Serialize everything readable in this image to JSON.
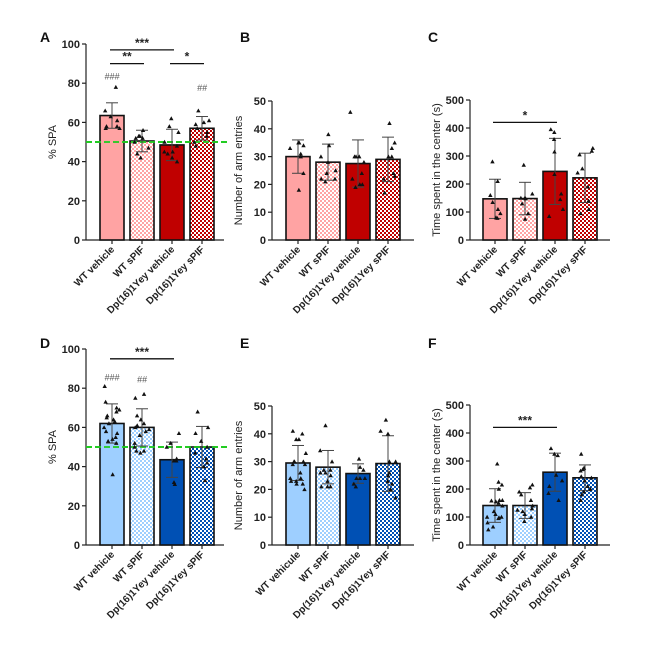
{
  "colors": {
    "wt_red": "#FFA3A3",
    "wt_red_check": "#FF9E9E",
    "dp_red": "#C00000",
    "dp_red_check": "#C00000",
    "wt_blue": "#9ECFFF",
    "wt_blue_check": "#8CC4FF",
    "dp_blue": "#0050B4",
    "dp_blue_check": "#0050B4",
    "reference_line": "#22CC22",
    "axis": "#222222"
  },
  "chart_data": [
    {
      "panel": "A",
      "type": "bar",
      "ylabel": "% SPA",
      "ylim": [
        0,
        100
      ],
      "yticks": [
        0,
        20,
        40,
        60,
        80,
        100
      ],
      "categories": [
        "WT vehicle",
        "WT sPIF",
        "Dp(16)1Yey vehicle",
        "Dp(16)1Yey sPIF"
      ],
      "fills": [
        "wt_red",
        "wt_red_check",
        "dp_red",
        "dp_red_check"
      ],
      "values": [
        63.5,
        50.5,
        48.5,
        57
      ],
      "errors": [
        6.5,
        5.5,
        8,
        6
      ],
      "points": [
        [
          78,
          66,
          63,
          61,
          58,
          58,
          57,
          57
        ],
        [
          56,
          53,
          53,
          52,
          52,
          50,
          47,
          44,
          42
        ],
        [
          62,
          58,
          55,
          50,
          48,
          45,
          45,
          44,
          42,
          40
        ],
        [
          66,
          61,
          60,
          59,
          57,
          55,
          53,
          50,
          48
        ]
      ],
      "reference_line": 50,
      "significance": [
        {
          "from": 0,
          "to": 2,
          "label": "***",
          "y": 97
        },
        {
          "from": 0,
          "to": 1,
          "label": "**",
          "y": 90
        },
        {
          "from": 2,
          "to": 3,
          "label": "*",
          "y": 90
        }
      ],
      "annotations": [
        {
          "bar": 0,
          "label": "###",
          "y": 82
        },
        {
          "bar": 3,
          "label": "##",
          "y": 76
        }
      ]
    },
    {
      "panel": "B",
      "type": "bar",
      "ylabel": "Number of arm entries",
      "ylim": [
        0,
        50
      ],
      "yticks": [
        0,
        10,
        20,
        30,
        40,
        50
      ],
      "categories": [
        "WT vehicle",
        "WT sPIF",
        "Dp(16)1Yey vehicle",
        "Dp(16)1Yey sPIF"
      ],
      "fills": [
        "wt_red",
        "wt_red_check",
        "dp_red",
        "dp_red_check"
      ],
      "values": [
        30,
        28,
        27.5,
        29
      ],
      "errors": [
        6,
        6.5,
        8.5,
        8
      ],
      "points": [
        [
          35,
          35,
          34,
          33,
          31,
          30,
          24,
          18
        ],
        [
          38,
          34,
          30,
          28,
          25,
          24,
          22,
          22,
          21
        ],
        [
          46,
          30,
          30,
          30,
          28,
          24,
          22,
          20,
          20,
          19
        ],
        [
          42,
          35,
          33,
          30,
          30,
          24,
          23,
          22,
          17
        ]
      ],
      "reference_line": null,
      "significance": [],
      "annotations": []
    },
    {
      "panel": "C",
      "type": "bar",
      "ylabel": "Time spent in the center (s)",
      "ylim": [
        0,
        500
      ],
      "yticks": [
        0,
        100,
        200,
        300,
        400,
        500
      ],
      "categories": [
        "WT vehicle",
        "WT sPIF",
        "Dp(16)1Yey vehicle",
        "Dp(16)1Yey sPIF"
      ],
      "fills": [
        "wt_red",
        "wt_red_check",
        "dp_red",
        "dp_red_check"
      ],
      "values": [
        147,
        148,
        245,
        222
      ],
      "errors": [
        70,
        58,
        118,
        88
      ],
      "points": [
        [
          280,
          210,
          160,
          135,
          110,
          95,
          80,
          78
        ],
        [
          268,
          165,
          150,
          150,
          148,
          130,
          95,
          75
        ],
        [
          395,
          385,
          360,
          315,
          235,
          165,
          145,
          110,
          85
        ],
        [
          328,
          318,
          305,
          255,
          240,
          190,
          140,
          110,
          95
        ]
      ],
      "reference_line": null,
      "significance": [
        {
          "from": 0,
          "to": 2,
          "label": "*",
          "y": 420
        }
      ],
      "annotations": []
    },
    {
      "panel": "D",
      "type": "bar",
      "ylabel": "% SPA",
      "ylim": [
        0,
        100
      ],
      "yticks": [
        0,
        20,
        40,
        60,
        80,
        100
      ],
      "categories": [
        "WT vehicle",
        "WT sPIF",
        "Dp(16)1Yey vehicle",
        "Dp(16)1Yey sPIF"
      ],
      "fills": [
        "wt_blue",
        "wt_blue_check",
        "dp_blue",
        "dp_blue_check"
      ],
      "values": [
        62,
        60,
        43.5,
        50
      ],
      "errors": [
        10,
        9.5,
        9,
        10.5
      ],
      "points": [
        [
          81,
          73,
          70,
          69,
          68,
          66,
          65,
          64,
          63,
          62,
          60,
          58,
          57,
          55,
          54,
          53,
          52,
          36
        ],
        [
          77,
          75,
          66,
          64,
          62,
          61,
          60,
          59,
          58,
          56,
          52,
          50,
          48,
          48,
          47
        ],
        [
          57,
          52,
          50,
          44,
          43,
          43,
          32,
          31
        ],
        [
          68,
          60,
          57,
          53,
          50,
          47,
          44,
          42,
          40,
          33
        ]
      ],
      "reference_line": 50,
      "significance": [
        {
          "from": 0,
          "to": 2,
          "label": "***",
          "y": 95
        }
      ],
      "annotations": [
        {
          "bar": 0,
          "label": "###",
          "y": 84
        },
        {
          "bar": 1,
          "label": "##",
          "y": 83
        }
      ]
    },
    {
      "panel": "E",
      "type": "bar",
      "ylabel": "Number of arm entries",
      "ylim": [
        0,
        50
      ],
      "yticks": [
        0,
        10,
        20,
        30,
        40,
        50
      ],
      "categories": [
        "WT vehicule",
        "WT sPIF",
        "Dp(16)1Yey vehicle",
        "Dp(16)1Yey sPIF"
      ],
      "fills": [
        "wt_blue",
        "wt_blue_check",
        "dp_blue",
        "dp_blue_check"
      ],
      "values": [
        29.5,
        28,
        25.7,
        29.3
      ],
      "errors": [
        6.3,
        6,
        3.5,
        10
      ],
      "points": [
        [
          41,
          40,
          38,
          38,
          33,
          30,
          30,
          30,
          29,
          29,
          26,
          24,
          24,
          23,
          23,
          22,
          22,
          20
        ],
        [
          43,
          34,
          30,
          27,
          27,
          26,
          26,
          25,
          23,
          21,
          21,
          21
        ],
        [
          31,
          28,
          27,
          24,
          24,
          24,
          22,
          21
        ],
        [
          45,
          41,
          40,
          30,
          30,
          26,
          25,
          23,
          22,
          20,
          17
        ]
      ],
      "reference_line": null,
      "significance": [],
      "annotations": []
    },
    {
      "panel": "F",
      "type": "bar",
      "ylabel": "Time spent in the center (s)",
      "ylim": [
        0,
        500
      ],
      "yticks": [
        0,
        100,
        200,
        300,
        400,
        500
      ],
      "categories": [
        "WT vehicle",
        "WT sPIF",
        "Dp(16)1Yey vehicle",
        "Dp(16)1Yey sPIF"
      ],
      "fills": [
        "wt_blue",
        "wt_blue_check",
        "dp_blue",
        "dp_blue_check"
      ],
      "values": [
        141,
        141,
        260,
        240
      ],
      "errors": [
        60,
        46,
        68,
        46
      ],
      "points": [
        [
          290,
          225,
          215,
          200,
          160,
          160,
          158,
          155,
          150,
          140,
          120,
          110,
          100,
          100,
          98,
          95,
          80,
          65,
          55
        ],
        [
          215,
          205,
          190,
          180,
          160,
          140,
          130,
          125,
          120,
          110,
          100,
          85
        ],
        [
          345,
          325,
          320,
          250,
          230,
          210,
          185,
          160
        ],
        [
          325,
          275,
          270,
          265,
          245,
          240,
          230,
          210,
          200,
          190,
          180,
          160
        ]
      ],
      "reference_line": null,
      "significance": [
        {
          "from": 0,
          "to": 2,
          "label": "***",
          "y": 420
        }
      ],
      "annotations": []
    }
  ]
}
